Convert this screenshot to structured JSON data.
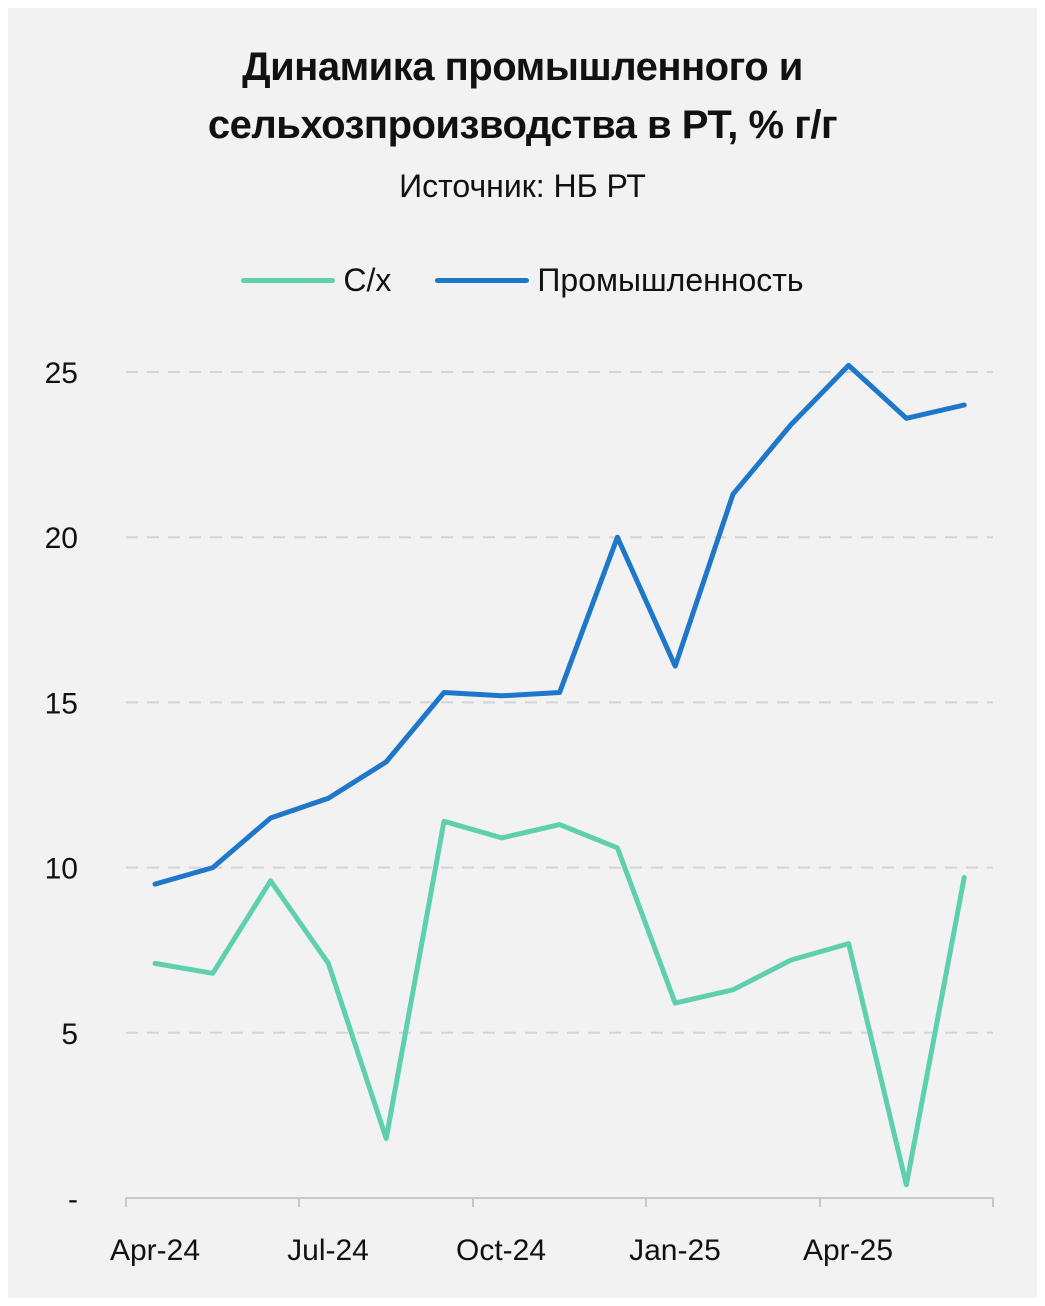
{
  "title_line1": "Динамика промышленного и",
  "title_line2": "сельхозпроизводства в РТ, % г/г",
  "subtitle": "Источник: НБ РТ",
  "chart_data": {
    "type": "line",
    "title": "Динамика промышленного и сельхозпроизводства в РТ, % г/г",
    "subtitle": "Источник: НБ РТ",
    "xlabel": "",
    "ylabel": "",
    "x": [
      "Apr-24",
      "May-24",
      "Jun-24",
      "Jul-24",
      "Aug-24",
      "Sep-24",
      "Oct-24",
      "Nov-24",
      "Dec-24",
      "Jan-25",
      "Feb-25",
      "Mar-25",
      "Apr-25",
      "May-25",
      "Jun-25"
    ],
    "x_tick_labels": [
      "Apr-24",
      "Jul-24",
      "Oct-24",
      "Jan-25",
      "Apr-25"
    ],
    "y_tick_labels": [
      "-",
      "5",
      "10",
      "15",
      "20",
      "25"
    ],
    "ylim": [
      0,
      25
    ],
    "grid": "horizontal dashed",
    "legend_position": "top",
    "series": [
      {
        "name": "С/х",
        "color": "#5fd0ad",
        "values": [
          7.1,
          6.8,
          9.6,
          7.1,
          1.8,
          11.4,
          10.9,
          11.3,
          10.6,
          5.9,
          6.3,
          7.2,
          7.7,
          0.4,
          9.7
        ]
      },
      {
        "name": "Промышленность",
        "color": "#1f77c9",
        "values": [
          9.5,
          10.0,
          11.5,
          12.1,
          13.2,
          15.3,
          15.2,
          15.3,
          20.0,
          16.1,
          21.3,
          23.4,
          25.2,
          23.6,
          24.0
        ]
      }
    ]
  }
}
